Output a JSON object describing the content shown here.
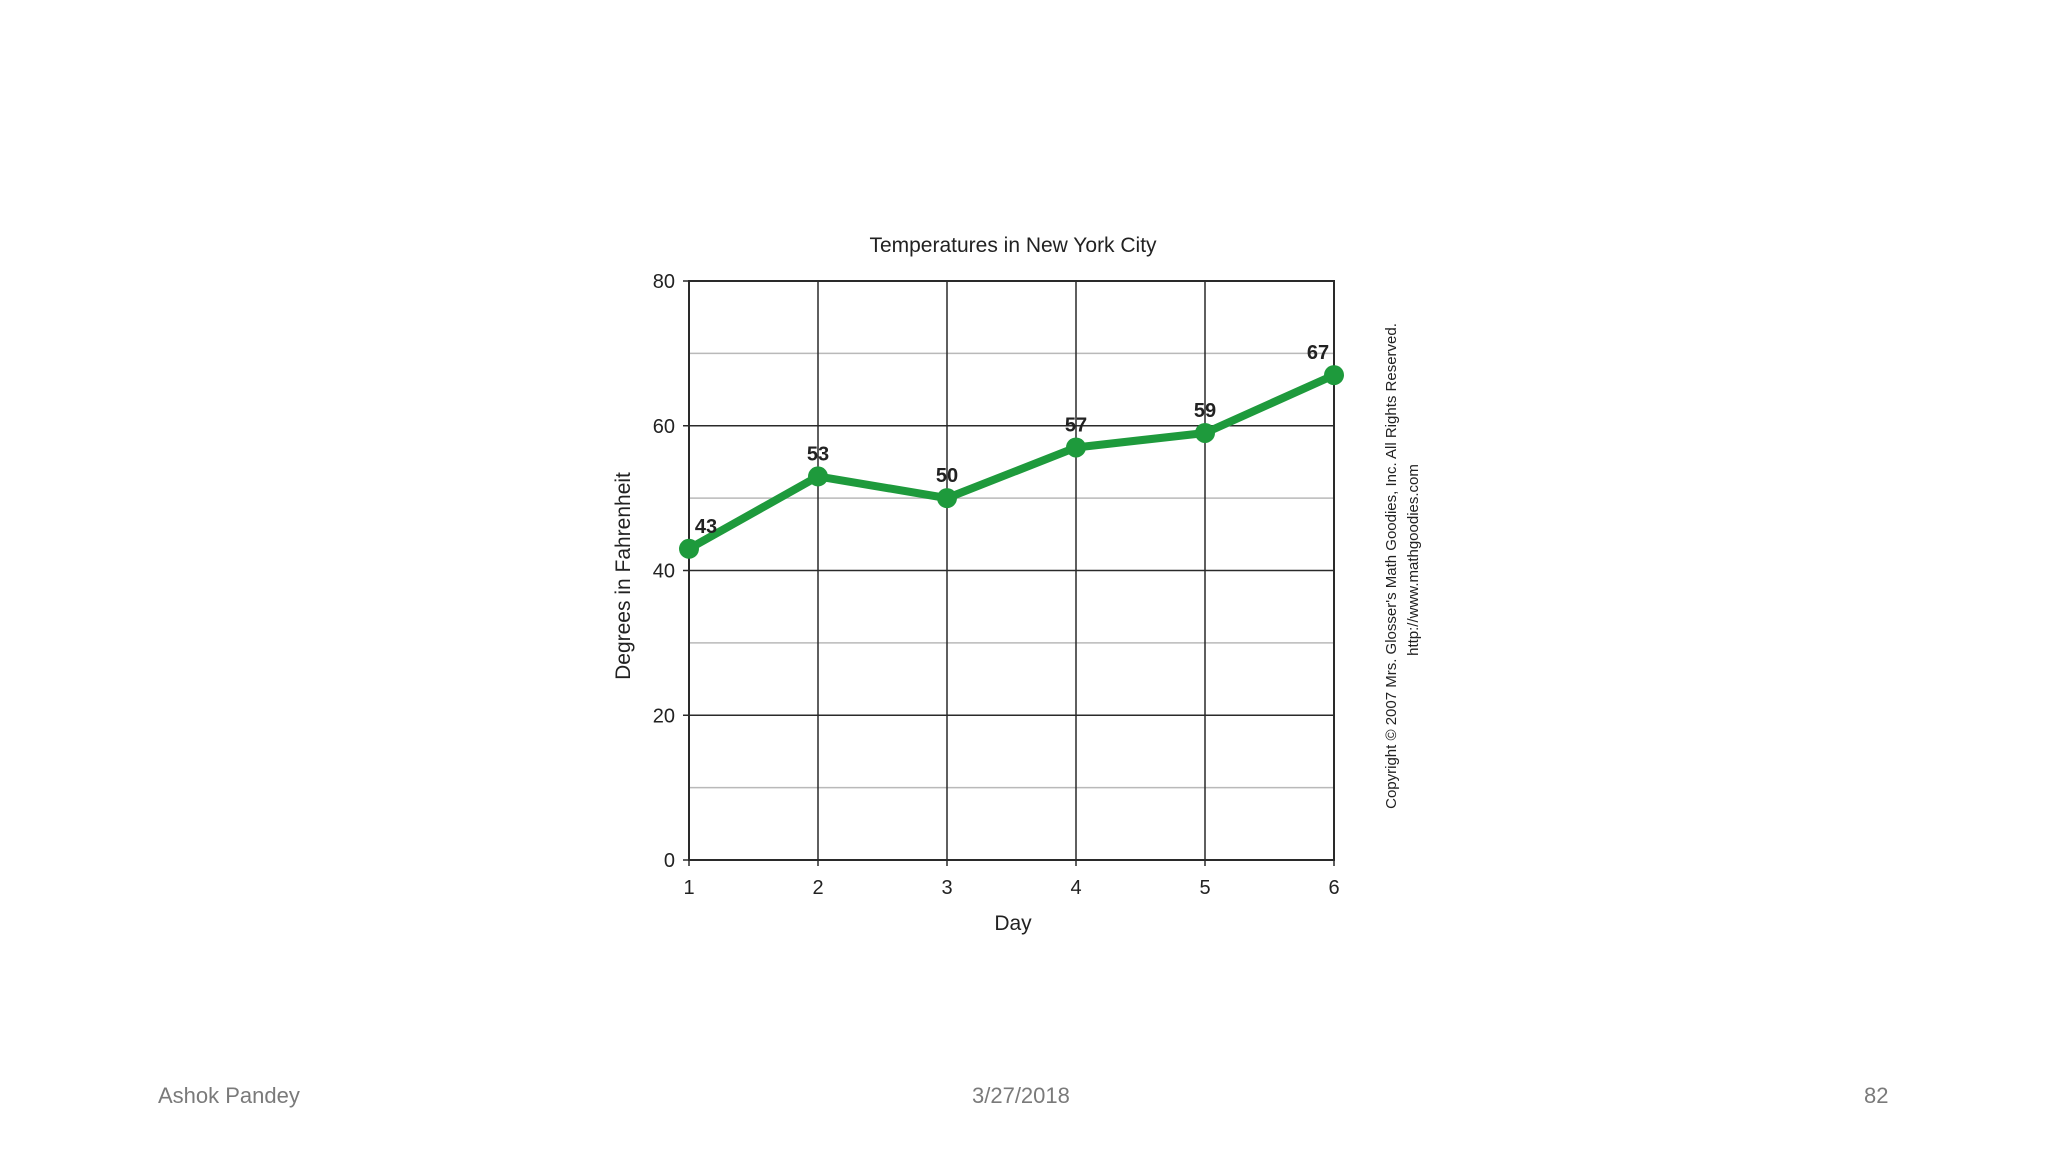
{
  "chart_data": {
    "type": "line",
    "title": "Temperatures in New York City",
    "xlabel": "Day",
    "ylabel": "Degrees in Fahrenheit",
    "x": [
      1,
      2,
      3,
      4,
      5,
      6
    ],
    "xticks": [
      "1",
      "2",
      "3",
      "4",
      "5",
      "6"
    ],
    "yticks": [
      "0",
      "20",
      "40",
      "60",
      "80"
    ],
    "ylim": [
      0,
      80
    ],
    "xlim": [
      1,
      6
    ],
    "grid": true,
    "series": [
      {
        "values": [
          43,
          53,
          50,
          57,
          59,
          67
        ],
        "color": "#1e9a3c"
      }
    ],
    "data_labels": [
      "43",
      "53",
      "50",
      "57",
      "59",
      "67"
    ],
    "copyright_line1": "Copyright © 2007 Mrs. Glosser's Math Goodies, Inc. All Rights Reserved.",
    "copyright_line2": "http://www.mathgoodies.com"
  },
  "footer": {
    "author": "Ashok Pandey",
    "date": "3/27/2018",
    "page": "82"
  }
}
